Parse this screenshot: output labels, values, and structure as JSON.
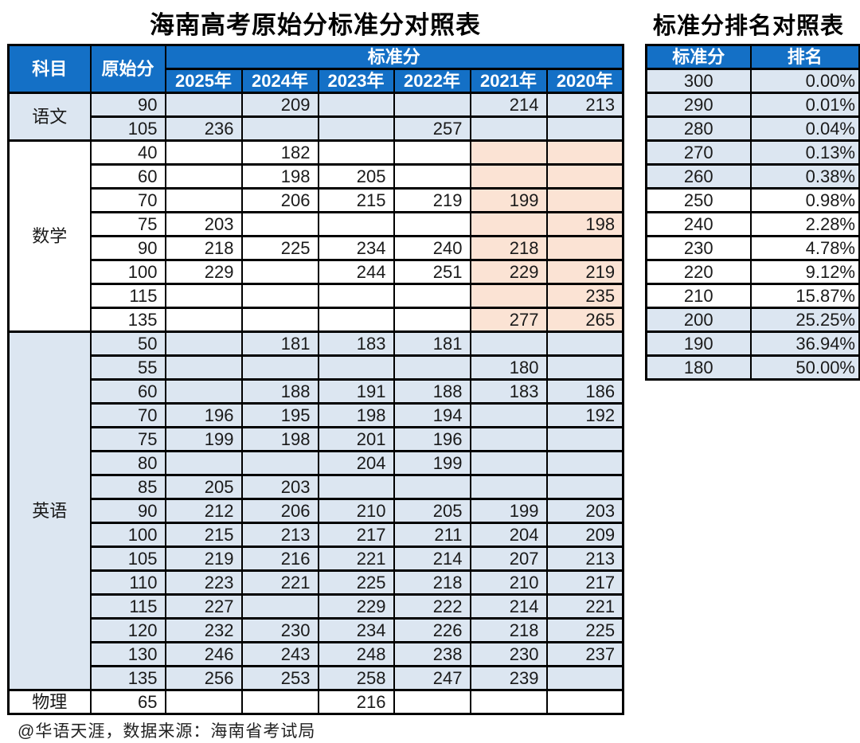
{
  "titles": {
    "main": "海南高考原始分标准分对照表",
    "rank": "标准分排名对照表"
  },
  "colors": {
    "header_blue": "#1470C6",
    "light_blue": "#DCE6F1",
    "pink": "#FBE3D4",
    "border": "#000000"
  },
  "main_table": {
    "headers": {
      "subject": "科目",
      "raw_score": "原始分",
      "standard_score": "标准分",
      "years": [
        "2025年",
        "2024年",
        "2023年",
        "2022年",
        "2021年",
        "2020年"
      ]
    },
    "sections": [
      {
        "subject": "语文",
        "tint": "blue",
        "rows": [
          {
            "raw": "90",
            "values": [
              "",
              "209",
              "",
              "",
              "214",
              "213"
            ]
          },
          {
            "raw": "105",
            "values": [
              "236",
              "",
              "",
              "257",
              "",
              ""
            ]
          }
        ]
      },
      {
        "subject": "数学",
        "tint": "white",
        "pink_cols": [
          4,
          5
        ],
        "rows": [
          {
            "raw": "40",
            "values": [
              "",
              "182",
              "",
              "",
              "",
              ""
            ]
          },
          {
            "raw": "60",
            "values": [
              "",
              "198",
              "205",
              "",
              "",
              ""
            ]
          },
          {
            "raw": "70",
            "values": [
              "",
              "206",
              "215",
              "219",
              "199",
              ""
            ]
          },
          {
            "raw": "75",
            "values": [
              "203",
              "",
              "",
              "",
              "",
              "198"
            ]
          },
          {
            "raw": "90",
            "values": [
              "218",
              "225",
              "234",
              "240",
              "218",
              ""
            ]
          },
          {
            "raw": "100",
            "values": [
              "229",
              "",
              "244",
              "251",
              "229",
              "219"
            ]
          },
          {
            "raw": "115",
            "values": [
              "",
              "",
              "",
              "",
              "",
              "235"
            ]
          },
          {
            "raw": "135",
            "values": [
              "",
              "",
              "",
              "",
              "277",
              "265"
            ]
          }
        ]
      },
      {
        "subject": "英语",
        "tint": "blue",
        "rows": [
          {
            "raw": "50",
            "values": [
              "",
              "181",
              "183",
              "181",
              "",
              ""
            ]
          },
          {
            "raw": "55",
            "values": [
              "",
              "",
              "",
              "",
              "180",
              ""
            ]
          },
          {
            "raw": "60",
            "values": [
              "",
              "188",
              "191",
              "188",
              "183",
              "186"
            ]
          },
          {
            "raw": "70",
            "values": [
              "196",
              "195",
              "198",
              "194",
              "",
              "192"
            ]
          },
          {
            "raw": "75",
            "values": [
              "199",
              "198",
              "201",
              "196",
              "",
              ""
            ]
          },
          {
            "raw": "80",
            "values": [
              "",
              "",
              "204",
              "199",
              "",
              ""
            ]
          },
          {
            "raw": "85",
            "values": [
              "205",
              "203",
              "",
              "",
              "",
              ""
            ]
          },
          {
            "raw": "90",
            "values": [
              "212",
              "206",
              "210",
              "205",
              "199",
              "203"
            ]
          },
          {
            "raw": "100",
            "values": [
              "215",
              "213",
              "217",
              "211",
              "204",
              "209"
            ]
          },
          {
            "raw": "105",
            "values": [
              "219",
              "216",
              "221",
              "214",
              "207",
              "213"
            ]
          },
          {
            "raw": "110",
            "values": [
              "223",
              "221",
              "225",
              "218",
              "210",
              "217"
            ]
          },
          {
            "raw": "115",
            "values": [
              "227",
              "",
              "229",
              "222",
              "214",
              "221"
            ]
          },
          {
            "raw": "120",
            "values": [
              "232",
              "230",
              "234",
              "226",
              "218",
              "225"
            ]
          },
          {
            "raw": "130",
            "values": [
              "246",
              "243",
              "248",
              "238",
              "230",
              "237"
            ]
          },
          {
            "raw": "135",
            "values": [
              "256",
              "253",
              "258",
              "247",
              "239",
              ""
            ]
          }
        ]
      },
      {
        "subject": "物理",
        "tint": "white",
        "rows": [
          {
            "raw": "65",
            "values": [
              "",
              "",
              "216",
              "",
              "",
              ""
            ]
          }
        ]
      }
    ]
  },
  "rank_table": {
    "headers": {
      "standard_score": "标准分",
      "rank": "排名"
    },
    "rows": [
      {
        "score": "300",
        "rank": "0.00%",
        "tint": "blue"
      },
      {
        "score": "290",
        "rank": "0.01%",
        "tint": "blue"
      },
      {
        "score": "280",
        "rank": "0.04%",
        "tint": "blue"
      },
      {
        "score": "270",
        "rank": "0.13%",
        "tint": "blue"
      },
      {
        "score": "260",
        "rank": "0.38%",
        "tint": "blue"
      },
      {
        "score": "250",
        "rank": "0.98%",
        "tint": "white"
      },
      {
        "score": "240",
        "rank": "2.28%",
        "tint": "white"
      },
      {
        "score": "230",
        "rank": "4.78%",
        "tint": "white"
      },
      {
        "score": "220",
        "rank": "9.12%",
        "tint": "white"
      },
      {
        "score": "210",
        "rank": "15.87%",
        "tint": "white"
      },
      {
        "score": "200",
        "rank": "25.25%",
        "tint": "blue"
      },
      {
        "score": "190",
        "rank": "36.94%",
        "tint": "blue"
      },
      {
        "score": "180",
        "rank": "50.00%",
        "tint": "blue"
      }
    ]
  },
  "footer": {
    "credit": "@华语天涯，数据来源：海南省考试局"
  }
}
